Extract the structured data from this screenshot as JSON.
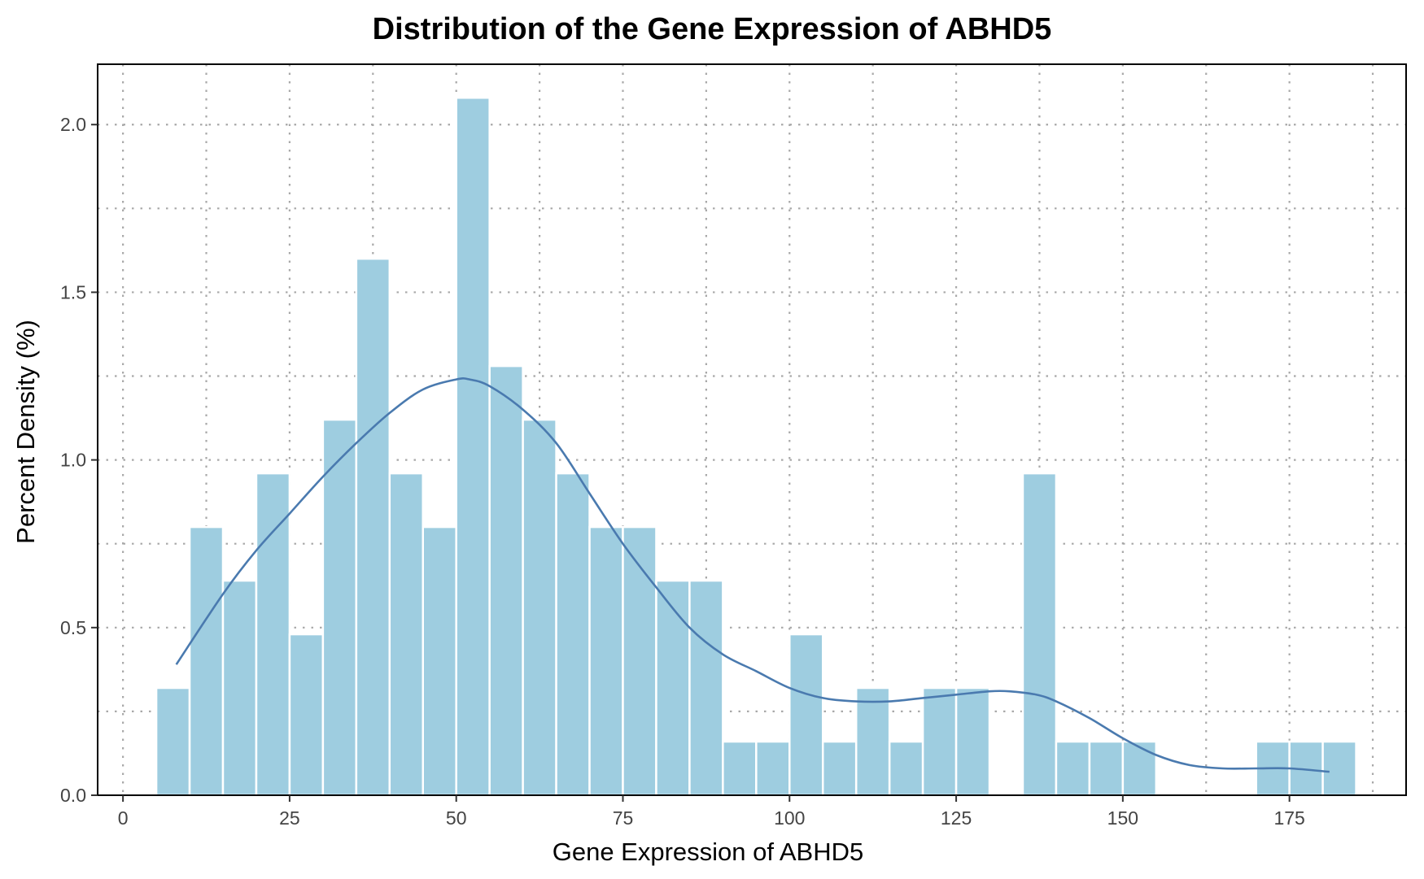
{
  "chart_data": {
    "type": "bar",
    "title": "Distribution of the Gene Expression of ABHD5",
    "xlabel": "Gene Expression of ABHD5",
    "ylabel": "Percent Density (%)",
    "xlim": [
      -3.8,
      192.5
    ],
    "ylim": [
      0,
      2.18
    ],
    "x_ticks": [
      0,
      25,
      50,
      75,
      100,
      125,
      150,
      175
    ],
    "x_tick_labels": [
      "0",
      "25",
      "50",
      "75",
      "100",
      "125",
      "150",
      "175"
    ],
    "y_ticks": [
      0,
      0.5,
      1.0,
      1.5,
      2.0
    ],
    "y_tick_labels": [
      "0.0",
      "0.5",
      "1.0",
      "1.5",
      "2.0"
    ],
    "x_minor_grid": [
      12.5,
      37.5,
      62.5,
      87.5,
      112.5,
      137.5,
      162.5,
      187.5
    ],
    "y_minor_grid": [
      0.25,
      0.75,
      1.25,
      1.75
    ],
    "grid": true,
    "grid_style": "dotted",
    "bin_width": 5,
    "bins": [
      {
        "start": 5,
        "end": 10,
        "value": 0.32
      },
      {
        "start": 10,
        "end": 15,
        "value": 0.8
      },
      {
        "start": 15,
        "end": 20,
        "value": 0.64
      },
      {
        "start": 20,
        "end": 25,
        "value": 0.96
      },
      {
        "start": 25,
        "end": 30,
        "value": 0.48
      },
      {
        "start": 30,
        "end": 35,
        "value": 1.12
      },
      {
        "start": 35,
        "end": 40,
        "value": 1.6
      },
      {
        "start": 40,
        "end": 45,
        "value": 0.96
      },
      {
        "start": 45,
        "end": 50,
        "value": 0.8
      },
      {
        "start": 50,
        "end": 55,
        "value": 2.08
      },
      {
        "start": 55,
        "end": 60,
        "value": 1.28
      },
      {
        "start": 60,
        "end": 65,
        "value": 1.12
      },
      {
        "start": 65,
        "end": 70,
        "value": 0.96
      },
      {
        "start": 70,
        "end": 75,
        "value": 0.8
      },
      {
        "start": 75,
        "end": 80,
        "value": 0.8
      },
      {
        "start": 80,
        "end": 85,
        "value": 0.64
      },
      {
        "start": 85,
        "end": 90,
        "value": 0.64
      },
      {
        "start": 90,
        "end": 95,
        "value": 0.16
      },
      {
        "start": 95,
        "end": 100,
        "value": 0.16
      },
      {
        "start": 100,
        "end": 105,
        "value": 0.48
      },
      {
        "start": 105,
        "end": 110,
        "value": 0.16
      },
      {
        "start": 110,
        "end": 115,
        "value": 0.32
      },
      {
        "start": 115,
        "end": 120,
        "value": 0.16
      },
      {
        "start": 120,
        "end": 125,
        "value": 0.32
      },
      {
        "start": 125,
        "end": 130,
        "value": 0.32
      },
      {
        "start": 135,
        "end": 140,
        "value": 0.96
      },
      {
        "start": 140,
        "end": 145,
        "value": 0.16
      },
      {
        "start": 145,
        "end": 150,
        "value": 0.16
      },
      {
        "start": 150,
        "end": 155,
        "value": 0.16
      },
      {
        "start": 170,
        "end": 175,
        "value": 0.16
      },
      {
        "start": 175,
        "end": 180,
        "value": 0.16
      },
      {
        "start": 180,
        "end": 185,
        "value": 0.16
      }
    ],
    "kde_curve": {
      "x": [
        8,
        15,
        20,
        25,
        30,
        35,
        40,
        45,
        50,
        52,
        55,
        60,
        65,
        70,
        75,
        80,
        85,
        90,
        95,
        100,
        105,
        110,
        115,
        120,
        125,
        130,
        133,
        137,
        140,
        145,
        150,
        155,
        160,
        165,
        170,
        175,
        181
      ],
      "y": [
        0.39,
        0.6,
        0.73,
        0.84,
        0.95,
        1.05,
        1.14,
        1.21,
        1.24,
        1.24,
        1.22,
        1.15,
        1.05,
        0.9,
        0.75,
        0.62,
        0.5,
        0.42,
        0.37,
        0.32,
        0.29,
        0.28,
        0.28,
        0.29,
        0.3,
        0.31,
        0.31,
        0.3,
        0.28,
        0.23,
        0.17,
        0.12,
        0.09,
        0.08,
        0.08,
        0.08,
        0.07
      ]
    },
    "colors": {
      "bar_fill": "#9ecde0",
      "bar_edge": "#ffffff",
      "curve": "#4a7aaf",
      "grid": "#a8a8a8",
      "frame": "#000000"
    }
  }
}
